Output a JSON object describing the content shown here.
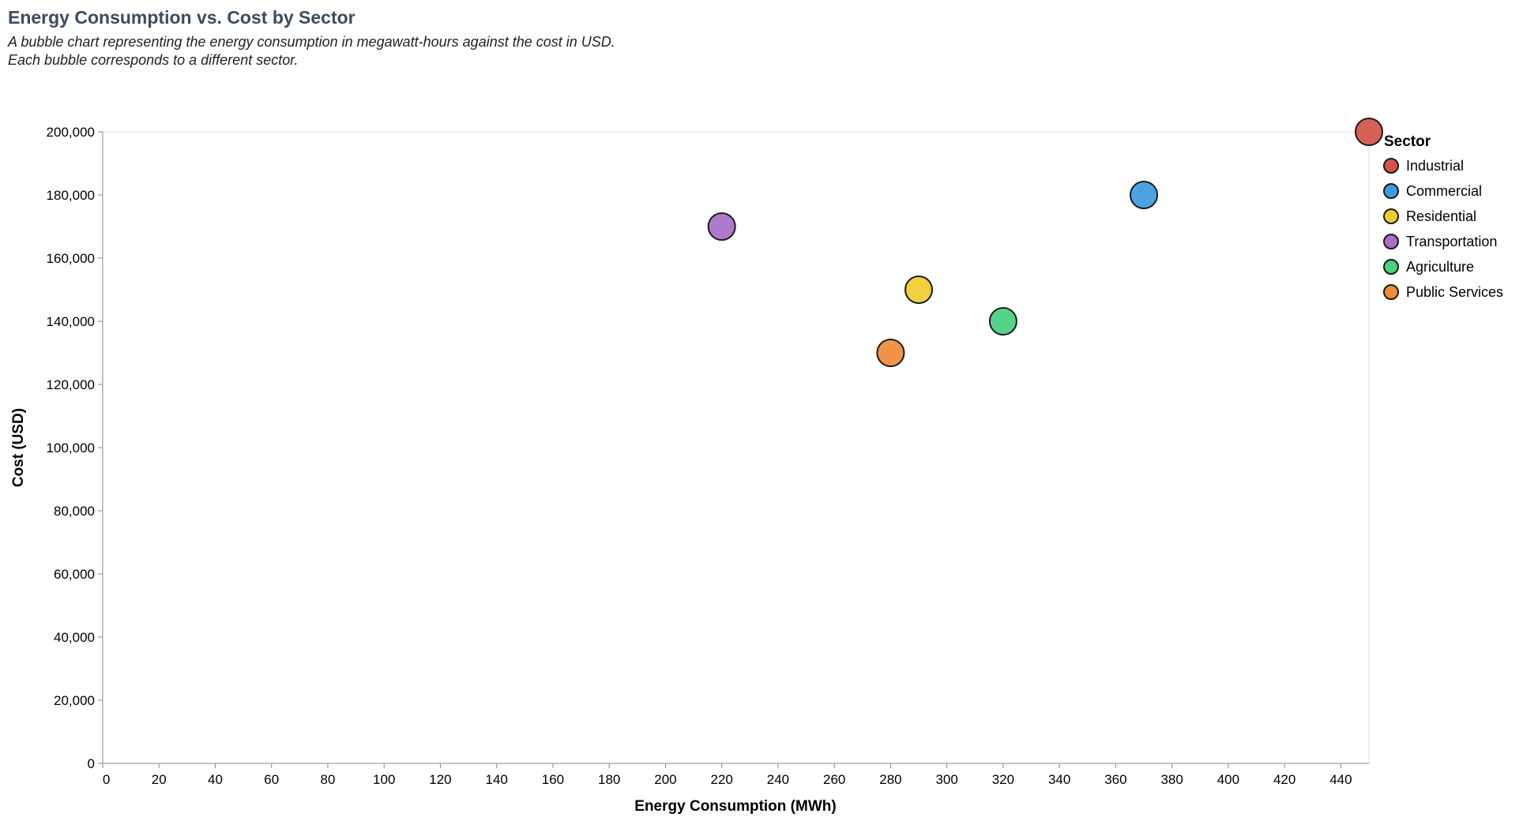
{
  "title": "Energy Consumption vs. Cost by Sector",
  "subtitle_lines": [
    "A bubble chart representing the energy consumption in megawatt-hours against the cost in USD.",
    "Each bubble corresponds to a different sector."
  ],
  "chart_data": {
    "type": "scatter",
    "title": "Energy Consumption vs. Cost by Sector",
    "xlabel": "Energy Consumption (MWh)",
    "ylabel": "Cost (USD)",
    "xlim": [
      0,
      450
    ],
    "ylim": [
      0,
      200000
    ],
    "x_ticks": [
      0,
      20,
      40,
      60,
      80,
      100,
      120,
      140,
      160,
      180,
      200,
      220,
      240,
      260,
      280,
      300,
      320,
      340,
      360,
      380,
      400,
      420,
      440
    ],
    "y_ticks": [
      0,
      20000,
      40000,
      60000,
      80000,
      100000,
      120000,
      140000,
      160000,
      180000,
      200000
    ],
    "y_tick_labels": [
      "0",
      "20,000",
      "40,000",
      "60,000",
      "80,000",
      "100,000",
      "120,000",
      "140,000",
      "160,000",
      "180,000",
      "200,000"
    ],
    "grid": false,
    "legend": {
      "title": "Sector",
      "placement": "right"
    },
    "series": [
      {
        "name": "Industrial",
        "color": "#d3534a",
        "x": 450,
        "y": 200000
      },
      {
        "name": "Commercial",
        "color": "#3e9be0",
        "x": 370,
        "y": 180000
      },
      {
        "name": "Residential",
        "color": "#f0cb2e",
        "x": 290,
        "y": 150000
      },
      {
        "name": "Transportation",
        "color": "#a86ec8",
        "x": 220,
        "y": 170000
      },
      {
        "name": "Agriculture",
        "color": "#46d07f",
        "x": 320,
        "y": 140000
      },
      {
        "name": "Public Services",
        "color": "#ef8c38",
        "x": 280,
        "y": 130000
      }
    ]
  }
}
